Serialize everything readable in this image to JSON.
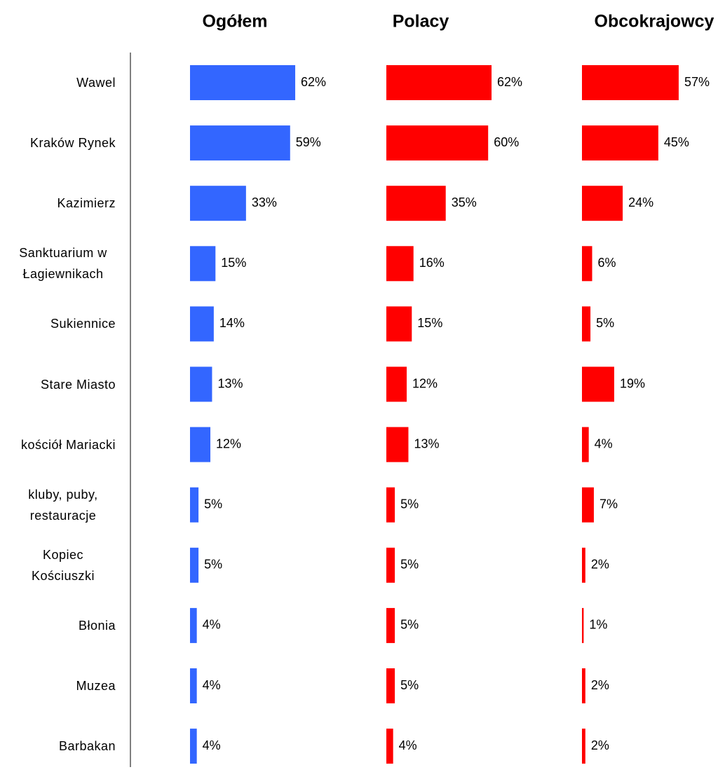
{
  "chart_data": {
    "type": "bar",
    "orientation": "horizontal",
    "categories": [
      "Wawel",
      "Kraków Rynek",
      "Kazimierz",
      "Sanktuarium w Łagiewnikach",
      "Sukiennice",
      "Stare Miasto",
      "kościół Mariacki",
      "kluby, puby, restauracje",
      "Kopiec Kościuszki",
      "Błonia",
      "Muzea",
      "Barbakan"
    ],
    "series": [
      {
        "name": "Ogółem",
        "color": "#3366ff",
        "values": [
          62,
          59,
          33,
          15,
          14,
          13,
          12,
          5,
          5,
          4,
          4,
          4
        ],
        "value_labels": [
          "62%",
          "59%",
          "33%",
          "15%",
          "14%",
          "13%",
          "12%",
          "5%",
          "5%",
          "4%",
          "4%",
          "4%"
        ]
      },
      {
        "name": "Polacy",
        "color": "#ff0000",
        "values": [
          62,
          60,
          35,
          16,
          15,
          12,
          13,
          5,
          5,
          5,
          5,
          4
        ],
        "value_labels": [
          "62%",
          "60%",
          "35%",
          "16%",
          "15%",
          "12%",
          "13%",
          "5%",
          "5%",
          "5%",
          "5%",
          "4%"
        ]
      },
      {
        "name": "Obcokrajowcy",
        "color": "#ff0000",
        "values": [
          57,
          45,
          24,
          6,
          5,
          19,
          4,
          7,
          2,
          1,
          2,
          2
        ],
        "value_labels": [
          "57%",
          "45%",
          "24%",
          "6%",
          "5%",
          "19%",
          "4%",
          "7%",
          "2%",
          "1%",
          "2%",
          "2%"
        ]
      }
    ]
  }
}
